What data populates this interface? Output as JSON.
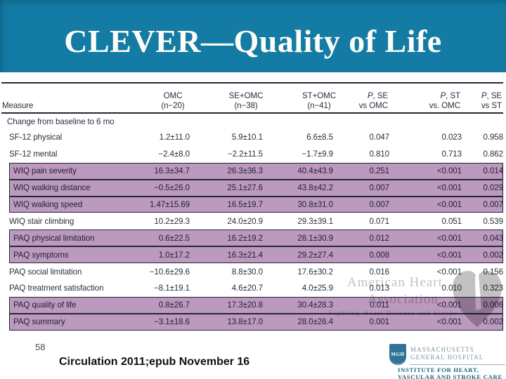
{
  "slide": {
    "title": "CLEVER—Quality of Life",
    "slide_number": "58",
    "citation": "Circulation 2011;epub November 16"
  },
  "colors": {
    "title_bg": "#147ba4",
    "highlight_purple": "#b18db7",
    "rule_dark": "#242838"
  },
  "table": {
    "section_label": "Change from baseline to 6 mo",
    "columns": [
      {
        "line1": "",
        "line2": "Measure"
      },
      {
        "line1": "OMC",
        "line2": "(n−20)"
      },
      {
        "line1": "SE+OMC",
        "line2": "(n−38)"
      },
      {
        "line1": "ST+OMC",
        "line2": "(n−41)"
      },
      {
        "p": "P",
        "rest": ", SE",
        "line2": "vs OMC"
      },
      {
        "p": "P",
        "rest": ", ST",
        "line2": "vs. OMC"
      },
      {
        "p": "P",
        "rest": ", SE",
        "line2": "vs ST"
      }
    ],
    "rows": [
      {
        "measure": "SF-12 physical",
        "highlighted": false,
        "values": [
          "1.2±11.0",
          "5.9±10.1",
          "6.6±8.5",
          "0.047",
          "0.023",
          "0.958"
        ]
      },
      {
        "measure": "SF-12 mental",
        "highlighted": false,
        "values": [
          "−2.4±8.0",
          "−2.2±11.5",
          "−1.7±9.9",
          "0.810",
          "0.713",
          "0.862"
        ]
      },
      {
        "measure": "WIQ pain severity",
        "highlighted": true,
        "values": [
          "16.3±34.7",
          "26.3±36.3",
          "40.4±43.9",
          "0.251",
          "<0.001",
          "0.014"
        ]
      },
      {
        "measure": "WIQ walking distance",
        "highlighted": true,
        "values": [
          "−0.5±26.0",
          "25.1±27.6",
          "43.8±42.2",
          "0.007",
          "<0.001",
          "0.029"
        ]
      },
      {
        "measure": "WIQ walking speed",
        "highlighted": true,
        "values": [
          "1.47±15.69",
          "16.5±19.7",
          "30.8±31.0",
          "0.007",
          "<0.001",
          "0.007"
        ]
      },
      {
        "measure": "WIQ stair climbing",
        "highlighted": false,
        "values": [
          "10.2±29.3",
          "24.0±20.9",
          "29.3±39.1",
          "0.071",
          "0.051",
          "0.539"
        ]
      },
      {
        "measure": "PAQ physical limitation",
        "highlighted": true,
        "values": [
          "0.6±22.5",
          "16.2±19.2",
          "28.1±30.9",
          "0.012",
          "<0.001",
          "0.043"
        ]
      },
      {
        "measure": "PAQ symptoms",
        "highlighted": true,
        "values": [
          "1.0±17.2",
          "16.3±21.4",
          "29.2±27.4",
          "0.008",
          "<0.001",
          "0.002"
        ]
      },
      {
        "measure": "PAQ social limitation",
        "highlighted": false,
        "values": [
          "−10.6±29.6",
          "8.8±30.0",
          "17.6±30.2",
          "0.016",
          "<0.001",
          "0.156"
        ]
      },
      {
        "measure": "PAQ treatment satisfaction",
        "highlighted": false,
        "values": [
          "−8.1±19.1",
          "4.6±20.7",
          "4.0±25.9",
          "0.013",
          "0.010",
          "0.323"
        ]
      },
      {
        "measure": "PAQ quality of life",
        "highlighted": true,
        "values": [
          "0.8±26.7",
          "17.3±20.8",
          "30.4±28.3",
          "0.011",
          "<0.001",
          "0.006"
        ]
      },
      {
        "measure": "PAQ summary",
        "highlighted": true,
        "values": [
          "−3.1±18.6",
          "13.8±17.0",
          "28.0±26.4",
          "0.001",
          "<0.001",
          "0.002"
        ]
      }
    ]
  },
  "watermark": {
    "line1": "American Heart",
    "line2": "Association",
    "line3": "Fighting Heart Disease and Stroke"
  },
  "logo": {
    "shield": "MGH",
    "org_line1": "MASSACHUSETTS",
    "org_line2": "GENERAL HOSPITAL",
    "inst_line1": "INSTITUTE FOR HEART,",
    "inst_line2": "VASCULAR AND STROKE CARE"
  }
}
